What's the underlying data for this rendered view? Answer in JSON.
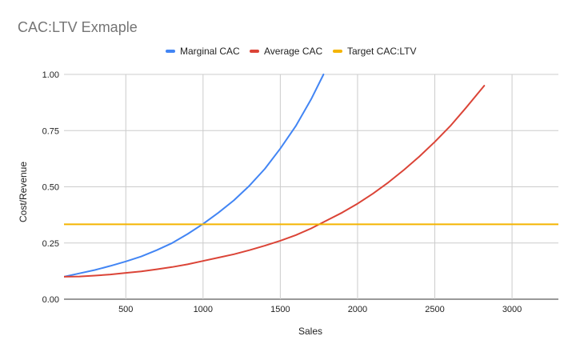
{
  "chart_data": {
    "type": "line",
    "title": "CAC:LTV Exmaple",
    "xlabel": "Sales",
    "ylabel": "Cost/Revenue",
    "xlim": [
      100,
      3300
    ],
    "ylim": [
      0,
      1.0
    ],
    "x_ticks": [
      500,
      1000,
      1500,
      2000,
      2500,
      3000
    ],
    "x_tick_labels": [
      "500",
      "1000",
      "1500",
      "2000",
      "2500",
      "3000"
    ],
    "y_ticks": [
      0,
      0.25,
      0.5,
      0.75,
      1.0
    ],
    "y_tick_labels": [
      "0.00",
      "0.25",
      "0.50",
      "0.75",
      "1.00"
    ],
    "grid": true,
    "legend_position": "top",
    "series": [
      {
        "name": "Marginal CAC",
        "color": "#4285f4",
        "x": [
          100,
          200,
          300,
          400,
          500,
          600,
          700,
          800,
          900,
          1000,
          1100,
          1200,
          1300,
          1400,
          1500,
          1600,
          1700,
          1780
        ],
        "y": [
          0.1,
          0.115,
          0.13,
          0.148,
          0.168,
          0.19,
          0.218,
          0.25,
          0.29,
          0.335,
          0.385,
          0.44,
          0.505,
          0.58,
          0.67,
          0.77,
          0.89,
          1.0
        ]
      },
      {
        "name": "Average CAC",
        "color": "#db4437",
        "x": [
          100,
          200,
          300,
          400,
          500,
          600,
          700,
          800,
          900,
          1000,
          1100,
          1200,
          1300,
          1400,
          1500,
          1600,
          1700,
          1800,
          1900,
          2000,
          2100,
          2200,
          2300,
          2400,
          2500,
          2600,
          2700,
          2820
        ],
        "y": [
          0.1,
          0.101,
          0.105,
          0.11,
          0.117,
          0.124,
          0.133,
          0.143,
          0.155,
          0.17,
          0.185,
          0.2,
          0.218,
          0.238,
          0.26,
          0.285,
          0.315,
          0.35,
          0.385,
          0.425,
          0.47,
          0.52,
          0.575,
          0.635,
          0.7,
          0.77,
          0.85,
          0.95
        ]
      },
      {
        "name": "Target CAC:LTV",
        "color": "#f4b400",
        "x": [
          100,
          3300
        ],
        "y": [
          0.333,
          0.333
        ]
      }
    ]
  }
}
